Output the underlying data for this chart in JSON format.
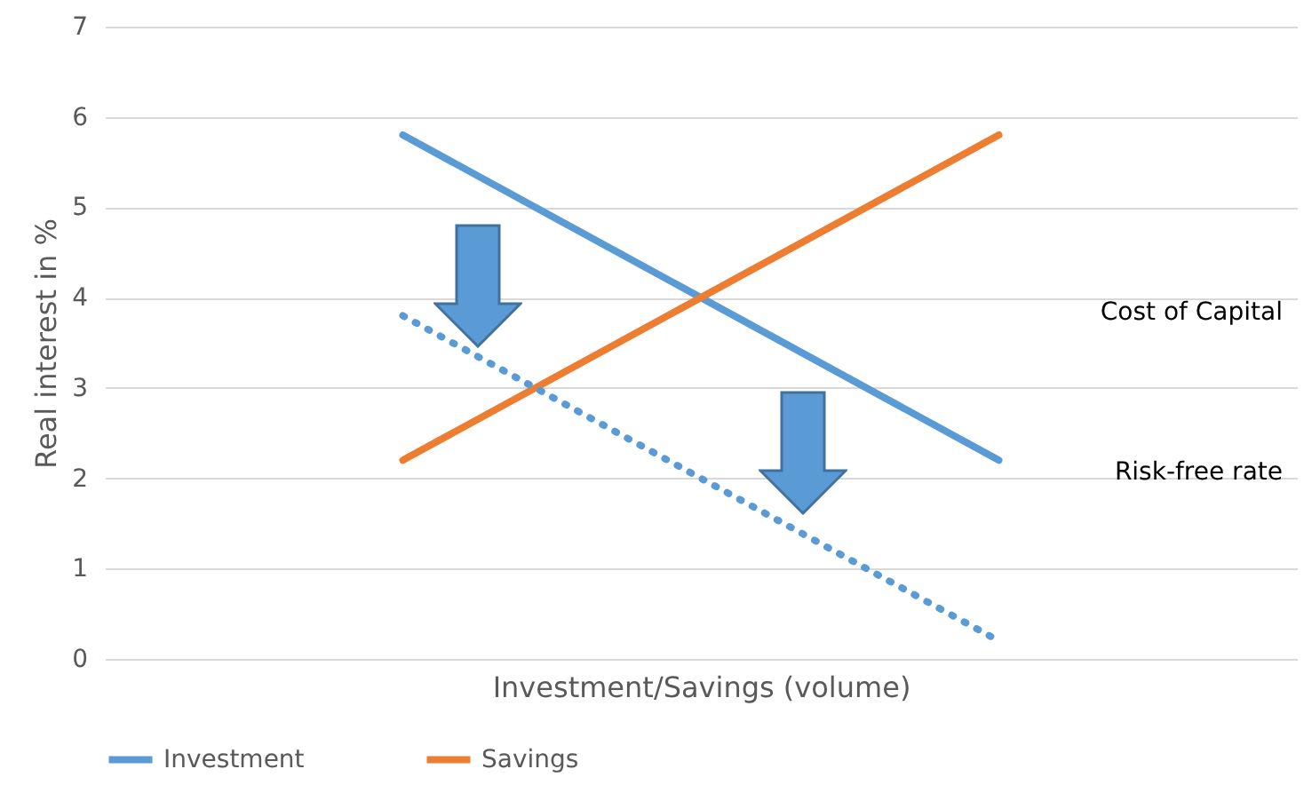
{
  "chart_data": {
    "type": "line",
    "xlabel": "Investment/Savings (volume)",
    "ylabel": "Real interest in %",
    "categories": [
      null,
      null
    ],
    "series": [
      {
        "name": "Investment",
        "color": "#5b9bd5",
        "values": [
          5.8,
          2.2
        ]
      },
      {
        "name": "Savings",
        "color": "#ed7d31",
        "values": [
          2.2,
          5.8
        ]
      },
      {
        "color": "#5b9bd5",
        "values": [
          3.8,
          0.2
        ],
        "line_style": "dotted"
      }
    ],
    "annotations": [
      "Cost of Capital",
      "Risk-free rate"
    ],
    "ylim": [
      0,
      7
    ],
    "yticks": [
      0,
      1,
      2,
      3,
      4,
      5,
      6,
      7
    ],
    "grid": "y",
    "legend": "bottom",
    "line_style": "solid"
  }
}
